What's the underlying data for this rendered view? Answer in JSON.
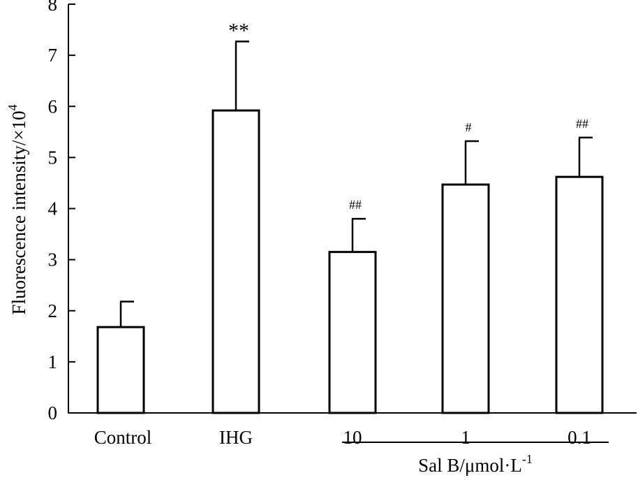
{
  "chart_data": {
    "type": "bar",
    "title": "",
    "ylabel": "Fluorescence intensity/×10",
    "ylabel_superscript": "4",
    "ylim": [
      0,
      8
    ],
    "yticks": [
      "0",
      "1",
      "2",
      "3",
      "4",
      "5",
      "6",
      "7",
      "8"
    ],
    "grid": false,
    "categories": [
      "Control",
      "IHG",
      "10",
      "1",
      "0.1"
    ],
    "values": [
      1.68,
      5.92,
      3.15,
      4.47,
      4.62
    ],
    "errors": [
      0.5,
      1.35,
      0.65,
      0.85,
      0.77
    ],
    "annotations": [
      "",
      "**",
      "##",
      "#",
      "##"
    ],
    "group_label": "Sal B/μmol·L",
    "group_label_superscript": "-1",
    "group_categories": [
      "10",
      "1",
      "0.1"
    ],
    "bar_fill": "#ffffff",
    "bar_stroke": "#000000"
  }
}
